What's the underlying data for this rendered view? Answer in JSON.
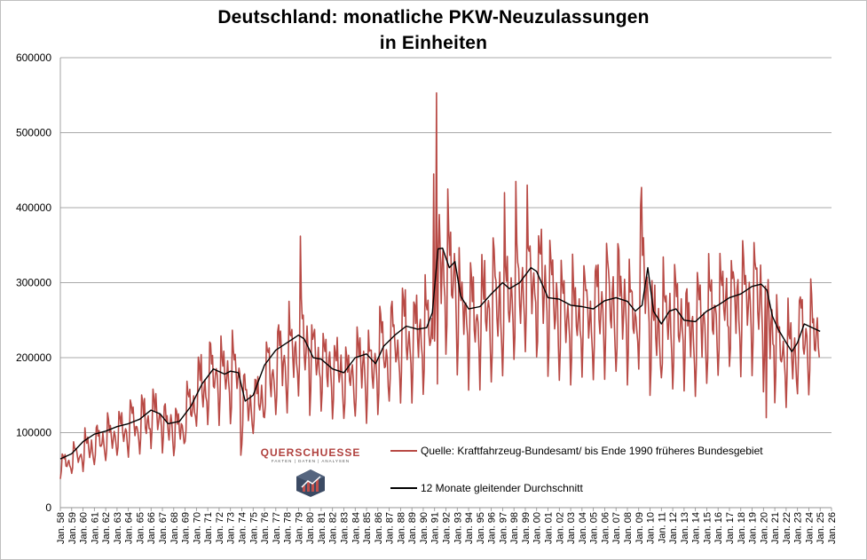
{
  "chart_data": {
    "type": "line",
    "title_line1": "Deutschland: monatliche PKW-Neuzulassungen",
    "title_line2": "in Einheiten",
    "ylim": [
      0,
      600000
    ],
    "y_ticks": [
      "0",
      "100000",
      "200000",
      "300000",
      "400000",
      "500000",
      "600000"
    ],
    "x_tick_labels": [
      "Jan. 58",
      "Jan. 59",
      "Jan. 60",
      "Jan. 61",
      "Jan. 62",
      "Jan. 63",
      "Jan. 64",
      "Jan. 65",
      "Jan. 66",
      "Jan. 67",
      "Jan. 68",
      "Jan. 69",
      "Jan. 70",
      "Jan. 71",
      "Jan. 72",
      "Jan. 73",
      "Jan. 74",
      "Jan. 75",
      "Jan. 76",
      "Jan. 77",
      "Jan. 78",
      "Jan. 79",
      "Jan. 80",
      "Jan. 81",
      "Jan. 82",
      "Jan. 83",
      "Jan. 84",
      "Jan. 85",
      "Jan. 86",
      "Jan. 87",
      "Jan. 88",
      "Jan. 89",
      "Jan. 90",
      "Jan. 91",
      "Jan. 92",
      "Jan. 93",
      "Jan. 94",
      "Jan. 95",
      "Jan. 96",
      "Jan. 97",
      "Jan. 98",
      "Jan. 99",
      "Jan. 00",
      "Jan. 01",
      "Jan. 02",
      "Jan. 03",
      "Jan. 04",
      "Jan. 05",
      "Jan. 06",
      "Jan. 07",
      "Jan. 08",
      "Jan. 09",
      "Jan. 10",
      "Jan. 11",
      "Jan. 12",
      "Jan. 13",
      "Jan. 14",
      "Jan. 15",
      "Jan. 16",
      "Jan. 17",
      "Jan. 18",
      "Jan. 19",
      "Jan. 20",
      "Jan. 21",
      "Jan. 22",
      "Jan. 23",
      "Jan. 24",
      "Jan. 25",
      "Jan. 26"
    ],
    "x_start_year": 1958,
    "x_end_year": 2026,
    "series": [
      {
        "name": "Quelle: Kraftfahrzeug-Bundesamt/ bis Ende 1990 früheres Bundesgebiet",
        "color": "#b84a45",
        "kind": "monthly",
        "start_year": 1958,
        "end_year": 2025,
        "annual_base": [
          62000,
          72000,
          82000,
          92000,
          100000,
          106000,
          112000,
          120000,
          128000,
          115000,
          112000,
          140000,
          170000,
          180000,
          178000,
          182000,
          145000,
          150000,
          185000,
          205000,
          215000,
          228000,
          205000,
          195000,
          188000,
          182000,
          198000,
          195000,
          210000,
          225000,
          240000,
          238000,
          245000,
          345000,
          320000,
          268000,
          265000,
          272000,
          285000,
          295000,
          300000,
          315000,
          305000,
          280000,
          275000,
          270000,
          268000,
          270000,
          280000,
          282000,
          265000,
          315000,
          245000,
          262000,
          255000,
          245000,
          252000,
          265000,
          280000,
          285000,
          290000,
          295000,
          250000,
          220000,
          215000,
          240000,
          235000
        ],
        "seasonal": [
          0.62,
          0.78,
          1.22,
          1.15,
          1.06,
          1.14,
          0.95,
          0.84,
          0.96,
          1.03,
          0.93,
          0.82
        ],
        "events": [
          {
            "year": 1990,
            "month": 11,
            "value": 445000
          },
          {
            "year": 1991,
            "month": 2,
            "value": 553000
          },
          {
            "year": 1991,
            "month": 3,
            "value": 165000
          },
          {
            "year": 1992,
            "month": 2,
            "value": 425000
          },
          {
            "year": 1979,
            "month": 2,
            "value": 362000
          },
          {
            "year": 1997,
            "month": 2,
            "value": 420000
          },
          {
            "year": 1998,
            "month": 2,
            "value": 435000
          },
          {
            "year": 1999,
            "month": 2,
            "value": 430000
          },
          {
            "year": 2009,
            "month": 2,
            "value": 403000
          },
          {
            "year": 2009,
            "month": 3,
            "value": 427000
          },
          {
            "year": 2020,
            "month": 3,
            "value": 120000
          },
          {
            "year": 1973,
            "month": 11,
            "value": 70000
          }
        ]
      },
      {
        "name": "12 Monate gleitender Durchschnitt",
        "color": "#000000",
        "kind": "moving_average",
        "x": [
          1958.0,
          1959.0,
          1960.0,
          1961.0,
          1962.0,
          1963.0,
          1964.0,
          1965.0,
          1966.0,
          1966.8,
          1967.5,
          1968.5,
          1969.5,
          1970.5,
          1971.5,
          1972.5,
          1973.0,
          1973.7,
          1974.3,
          1975.0,
          1976.0,
          1977.0,
          1978.0,
          1979.0,
          1979.5,
          1980.3,
          1981.0,
          1982.0,
          1983.0,
          1984.0,
          1985.0,
          1985.8,
          1986.5,
          1987.5,
          1988.5,
          1989.5,
          1990.3,
          1990.8,
          1991.3,
          1991.7,
          1992.3,
          1992.8,
          1993.3,
          1994.0,
          1995.0,
          1996.0,
          1997.0,
          1997.6,
          1998.5,
          1999.5,
          2000.0,
          2001.0,
          2002.0,
          2003.0,
          2004.0,
          2005.0,
          2006.0,
          2007.0,
          2008.0,
          2008.7,
          2009.3,
          2009.8,
          2010.3,
          2011.0,
          2011.7,
          2012.3,
          2013.0,
          2014.0,
          2015.0,
          2016.0,
          2017.0,
          2018.0,
          2019.0,
          2019.8,
          2020.3,
          2020.8,
          2021.3,
          2022.0,
          2022.5,
          2023.0,
          2023.6,
          2024.3,
          2025.0
        ],
        "y": [
          65000,
          72000,
          88000,
          98000,
          102000,
          108000,
          112000,
          118000,
          130000,
          125000,
          112000,
          115000,
          135000,
          165000,
          185000,
          178000,
          182000,
          180000,
          142000,
          150000,
          190000,
          210000,
          220000,
          230000,
          225000,
          200000,
          198000,
          185000,
          180000,
          200000,
          205000,
          192000,
          215000,
          230000,
          242000,
          238000,
          240000,
          260000,
          345000,
          346000,
          320000,
          328000,
          282000,
          265000,
          268000,
          285000,
          300000,
          292000,
          300000,
          320000,
          315000,
          280000,
          278000,
          270000,
          268000,
          265000,
          276000,
          280000,
          275000,
          262000,
          270000,
          320000,
          262000,
          245000,
          262000,
          265000,
          250000,
          248000,
          262000,
          270000,
          280000,
          285000,
          295000,
          298000,
          290000,
          255000,
          238000,
          220000,
          208000,
          220000,
          245000,
          240000,
          235000
        ]
      }
    ]
  },
  "watermark": {
    "brand": "QUERSCHUESSE",
    "tagline": "FAKTEN | DATEN | ANALYSEN"
  }
}
